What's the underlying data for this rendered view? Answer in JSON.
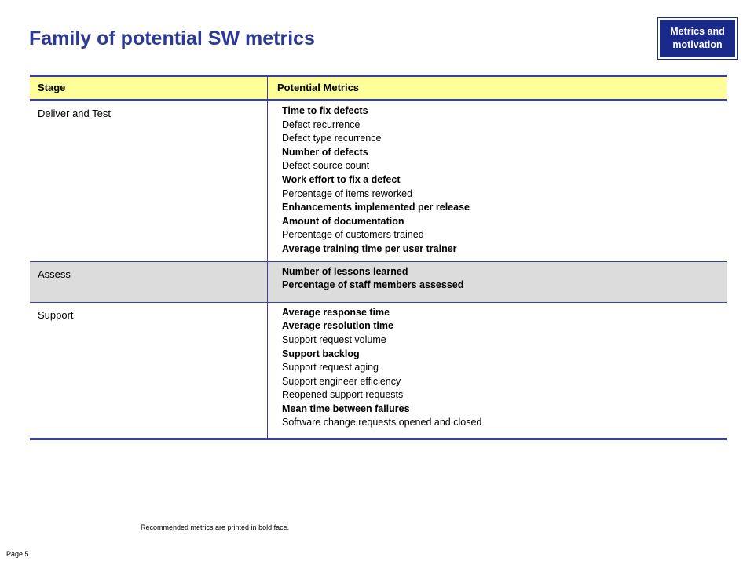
{
  "title": "Family of potential SW metrics",
  "section_badge": "Metrics and motivation",
  "table": {
    "headers": {
      "stage": "Stage",
      "metrics": "Potential Metrics"
    },
    "rows": [
      {
        "stage": "Deliver and Test",
        "shaded": false,
        "metrics": [
          {
            "text": "Time to fix defects",
            "bold": true
          },
          {
            "text": "Defect recurrence",
            "bold": false
          },
          {
            "text": "Defect type recurrence",
            "bold": false
          },
          {
            "text": "Number of defects",
            "bold": true
          },
          {
            "text": "Defect source count",
            "bold": false
          },
          {
            "text": "Work effort to fix a defect",
            "bold": true
          },
          {
            "text": "Percentage of items reworked",
            "bold": false
          },
          {
            "text": "Enhancements implemented per release",
            "bold": true
          },
          {
            "text": "Amount of documentation",
            "bold": true
          },
          {
            "text": "Percentage of customers trained",
            "bold": false
          },
          {
            "text": "Average training time per user trainer",
            "bold": true
          }
        ]
      },
      {
        "stage": "Assess",
        "shaded": true,
        "metrics": [
          {
            "text": "Number of lessons learned",
            "bold": true
          },
          {
            "text": "Percentage of staff members assessed",
            "bold": true
          }
        ]
      },
      {
        "stage": "Support",
        "shaded": false,
        "metrics": [
          {
            "text": "Average response time",
            "bold": true
          },
          {
            "text": "Average resolution time",
            "bold": true
          },
          {
            "text": "Support request volume",
            "bold": false
          },
          {
            "text": "Support backlog",
            "bold": true
          },
          {
            "text": "Support request aging",
            "bold": false
          },
          {
            "text": "Support engineer efficiency",
            "bold": false
          },
          {
            "text": "Reopened support requests",
            "bold": false
          },
          {
            "text": "Mean time between failures",
            "bold": true
          },
          {
            "text": "Software change requests opened and closed",
            "bold": false
          }
        ]
      }
    ]
  },
  "footnote": "Recommended metrics are printed in bold face.",
  "page_label": "Page 5",
  "colors": {
    "title": "#2b3a95",
    "badge_bg": "#1a2a8a",
    "header_bg": "#ffff99",
    "rule": "#3a3f99",
    "shaded_row": "#dcdcdc"
  }
}
